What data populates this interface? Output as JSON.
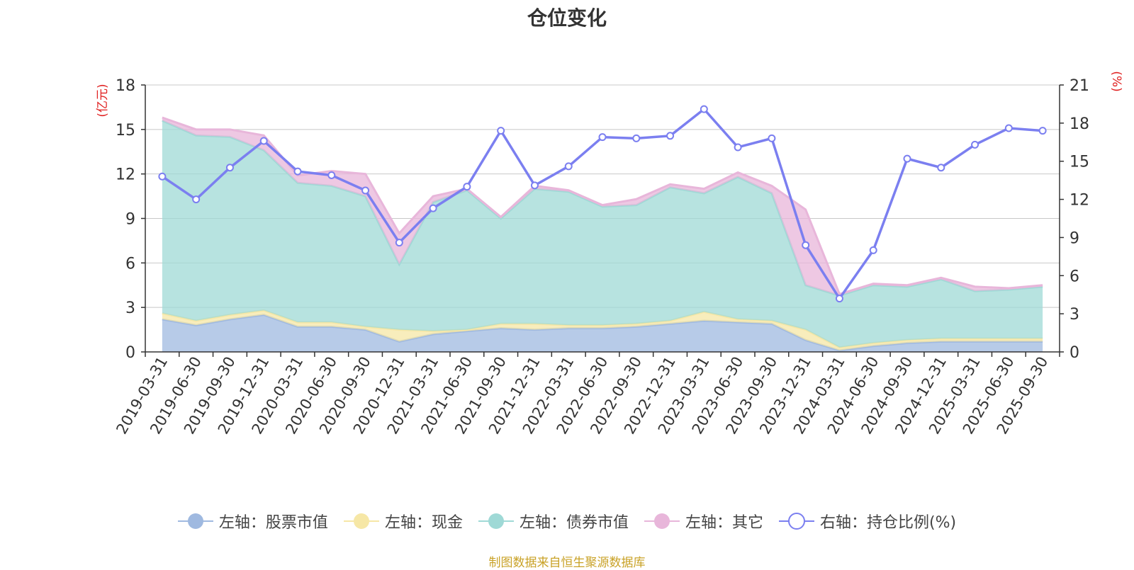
{
  "chart_data": {
    "type": "area",
    "title": "仓位变化",
    "left_axis_unit": "(亿元)",
    "right_axis_unit": "(%)",
    "ylim_left": [
      0,
      18
    ],
    "ylim_right": [
      0,
      21
    ],
    "yticks_left": [
      "0",
      "3",
      "6",
      "9",
      "12",
      "15",
      "18"
    ],
    "yticks_right": [
      "0",
      "3",
      "6",
      "9",
      "12",
      "15",
      "18",
      "21"
    ],
    "categories": [
      "2019-03-31",
      "2019-06-30",
      "2019-09-30",
      "2019-12-31",
      "2020-03-31",
      "2020-06-30",
      "2020-09-30",
      "2020-12-31",
      "2021-03-31",
      "2021-06-30",
      "2021-09-30",
      "2021-12-31",
      "2022-03-31",
      "2022-06-30",
      "2022-09-30",
      "2022-12-31",
      "2023-03-31",
      "2023-06-30",
      "2023-09-30",
      "2023-12-31",
      "2024-03-31",
      "2024-06-30",
      "2024-09-30",
      "2024-12-31",
      "2025-03-31",
      "2025-06-30",
      "2025-09-30"
    ],
    "series": [
      {
        "name": "左轴：股票市值",
        "axis": "left",
        "color": "#9fb9e0",
        "values": [
          2.2,
          1.8,
          2.2,
          2.5,
          1.7,
          1.7,
          1.5,
          0.7,
          1.2,
          1.4,
          1.6,
          1.5,
          1.6,
          1.6,
          1.7,
          1.9,
          2.1,
          2.0,
          1.9,
          0.8,
          0.1,
          0.4,
          0.6,
          0.7,
          0.7,
          0.7,
          0.7
        ]
      },
      {
        "name": "左轴：现金",
        "axis": "left",
        "color": "#f6e7a6",
        "values": [
          0.4,
          0.3,
          0.3,
          0.3,
          0.3,
          0.3,
          0.2,
          0.8,
          0.2,
          0.1,
          0.3,
          0.4,
          0.2,
          0.2,
          0.2,
          0.2,
          0.6,
          0.2,
          0.2,
          0.7,
          0.2,
          0.2,
          0.2,
          0.2,
          0.2,
          0.2,
          0.2
        ]
      },
      {
        "name": "左轴：债券市值",
        "axis": "left",
        "color": "#9fd9d6",
        "values": [
          13.0,
          12.5,
          12.0,
          10.8,
          9.4,
          9.2,
          8.8,
          4.4,
          8.7,
          9.4,
          7.1,
          9.1,
          9.0,
          8.0,
          8.0,
          9.0,
          8.0,
          9.6,
          8.6,
          3.0,
          3.5,
          3.9,
          3.6,
          4.0,
          3.2,
          3.3,
          3.5
        ]
      },
      {
        "name": "左轴：其它",
        "axis": "left",
        "color": "#e8b6da",
        "values": [
          0.2,
          0.4,
          0.5,
          1.0,
          0.5,
          1.0,
          1.5,
          2.1,
          0.4,
          0.1,
          0.1,
          0.2,
          0.1,
          0.1,
          0.4,
          0.2,
          0.3,
          0.3,
          0.5,
          5.1,
          0.1,
          0.1,
          0.1,
          0.1,
          0.3,
          0.1,
          0.1
        ]
      },
      {
        "name": "右轴：持仓比例(%)",
        "axis": "right",
        "color": "#7b7ff0",
        "values": [
          13.8,
          12.0,
          14.5,
          16.6,
          14.2,
          13.9,
          12.7,
          8.6,
          11.3,
          13.0,
          17.4,
          13.1,
          14.6,
          16.9,
          16.8,
          17.0,
          19.1,
          16.1,
          16.8,
          8.4,
          4.2,
          8.0,
          15.2,
          14.5,
          16.3,
          17.6,
          17.4
        ]
      }
    ]
  },
  "source_note": "制图数据来自恒生聚源数据库"
}
